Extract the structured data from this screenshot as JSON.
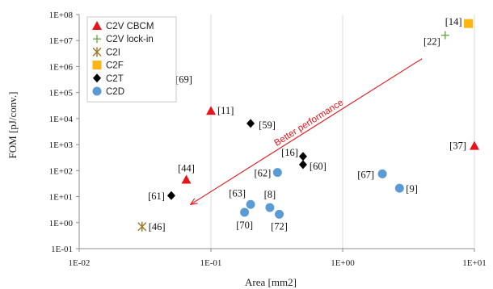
{
  "chart_data": {
    "type": "scatter",
    "title": "",
    "xlabel": "Area [mm2]",
    "ylabel": "FOM [pJ/conv.]",
    "x_scale": "log",
    "y_scale": "log",
    "xlim": [
      0.01,
      10
    ],
    "ylim": [
      0.1,
      100000000
    ],
    "x_ticks": [
      "1E-02",
      "1E-01",
      "1E+00",
      "1E+01"
    ],
    "y_ticks": [
      "1E-01",
      "1E+00",
      "1E+01",
      "1E+02",
      "1E+03",
      "1E+04",
      "1E+05",
      "1E+06",
      "1E+07",
      "1E+08"
    ],
    "grid": "vertical",
    "legend": "top-left",
    "series": [
      {
        "name": "C2V CBCM",
        "marker": "triangle",
        "color": "#e8141c",
        "points": [
          {
            "x": 0.1,
            "y": 20000,
            "label": "[11]"
          },
          {
            "x": 0.065,
            "y": 45,
            "label": "[44]"
          },
          {
            "x": 10,
            "y": 900,
            "label": "[37]"
          }
        ]
      },
      {
        "name": "C2V lock-in",
        "marker": "plus",
        "color": "#6aa84f",
        "points": [
          {
            "x": 6,
            "y": 16000000,
            "label": "[22]"
          }
        ]
      },
      {
        "name": "C2I",
        "marker": "star",
        "color": "#a07a2a",
        "points": [
          {
            "x": 0.03,
            "y": 0.7,
            "label": "[46]"
          }
        ]
      },
      {
        "name": "C2F",
        "marker": "square",
        "color": "#fdb515",
        "points": [
          {
            "x": 9,
            "y": 45000000,
            "label": "[14]"
          }
        ]
      },
      {
        "name": "C2T",
        "marker": "diamond",
        "color": "#000000",
        "points": [
          {
            "x": 0.2,
            "y": 6500,
            "label": "[59]"
          },
          {
            "x": 0.5,
            "y": 350,
            "label": "[16]"
          },
          {
            "x": 0.5,
            "y": 170,
            "label": "[60]"
          },
          {
            "x": 0.05,
            "y": 11,
            "label": "[61]"
          }
        ]
      },
      {
        "name": "C2D",
        "marker": "circle",
        "color": "#5b9bd5",
        "points": [
          {
            "x": 0.048,
            "y": 320000,
            "label": "[69]"
          },
          {
            "x": 0.32,
            "y": 85,
            "label": "[62]"
          },
          {
            "x": 2,
            "y": 75,
            "label": "[67]"
          },
          {
            "x": 2.7,
            "y": 21,
            "label": "[9]"
          },
          {
            "x": 0.2,
            "y": 5,
            "label": "[63]"
          },
          {
            "x": 0.28,
            "y": 3.8,
            "label": "[8]"
          },
          {
            "x": 0.18,
            "y": 2.5,
            "label": "[70]"
          },
          {
            "x": 0.33,
            "y": 2.1,
            "label": "[72]"
          }
        ]
      }
    ],
    "annotation": {
      "text": "Better performance",
      "color": "#e8141c",
      "from": {
        "x": 4,
        "y": 2000000
      },
      "to": {
        "x": 0.07,
        "y": 5
      }
    }
  }
}
